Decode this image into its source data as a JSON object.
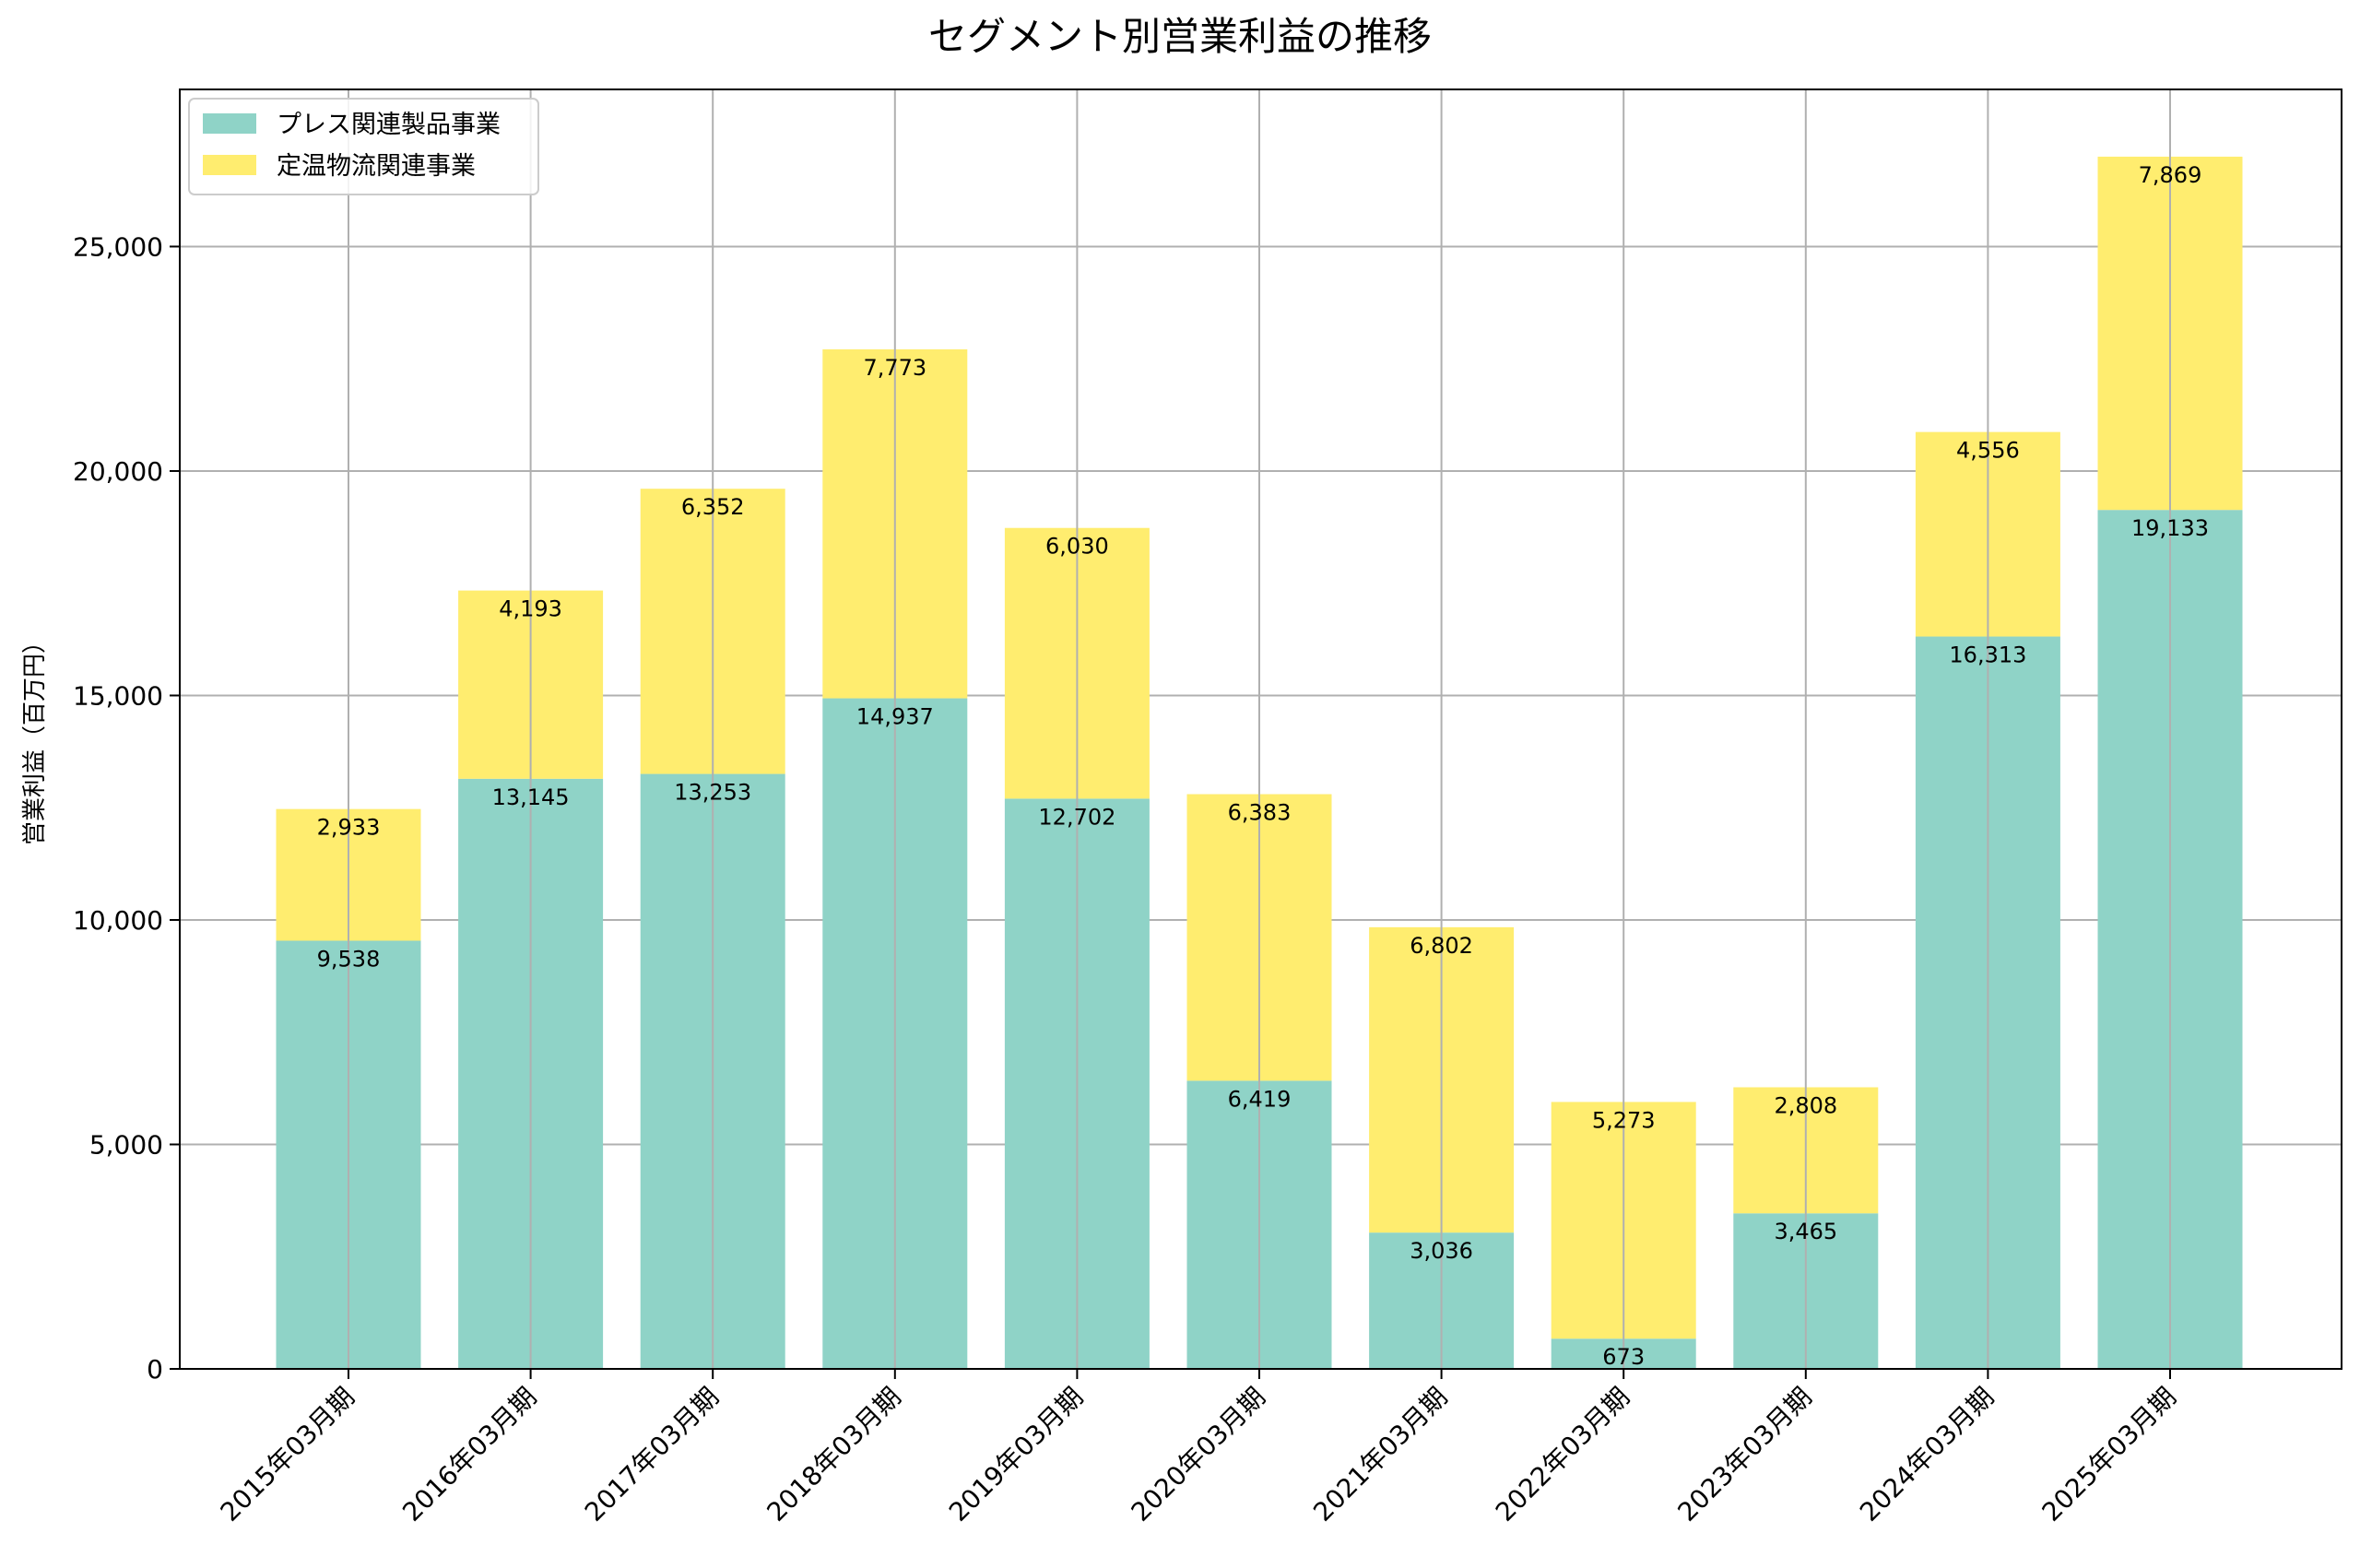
{
  "chart_data": {
    "type": "bar",
    "stacked": true,
    "title": "セグメント別営業利益の推移",
    "xlabel": "",
    "ylabel": "営業利益（百万円）",
    "ylim": [
      0,
      28500
    ],
    "yticks": [
      0,
      5000,
      10000,
      15000,
      20000,
      25000
    ],
    "ytick_labels": [
      "0",
      "5,000",
      "10,000",
      "15,000",
      "20,000",
      "25,000"
    ],
    "grid": true,
    "legend_position": "top-left",
    "categories": [
      "2015年03月期",
      "2016年03月期",
      "2017年03月期",
      "2018年03月期",
      "2019年03月期",
      "2020年03月期",
      "2021年03月期",
      "2022年03月期",
      "2023年03月期",
      "2024年03月期",
      "2025年03月期"
    ],
    "series": [
      {
        "name": "プレス関連製品事業",
        "color": "#8fd3c7",
        "values": [
          9538,
          13145,
          13253,
          14937,
          12702,
          6419,
          3036,
          673,
          3465,
          16313,
          19133
        ],
        "labels": [
          "9,538",
          "13,145",
          "13,253",
          "14,937",
          "12,702",
          "6,419",
          "3,036",
          "673",
          "3,465",
          "16,313",
          "19,133"
        ]
      },
      {
        "name": "定温物流関連事業",
        "color": "#ffed6f",
        "values": [
          2933,
          4193,
          6352,
          7773,
          6030,
          6383,
          6802,
          5273,
          2808,
          4556,
          7869
        ],
        "labels": [
          "2,933",
          "4,193",
          "6,352",
          "7,773",
          "6,030",
          "6,383",
          "6,802",
          "5,273",
          "2,808",
          "4,556",
          "7,869"
        ]
      }
    ]
  }
}
